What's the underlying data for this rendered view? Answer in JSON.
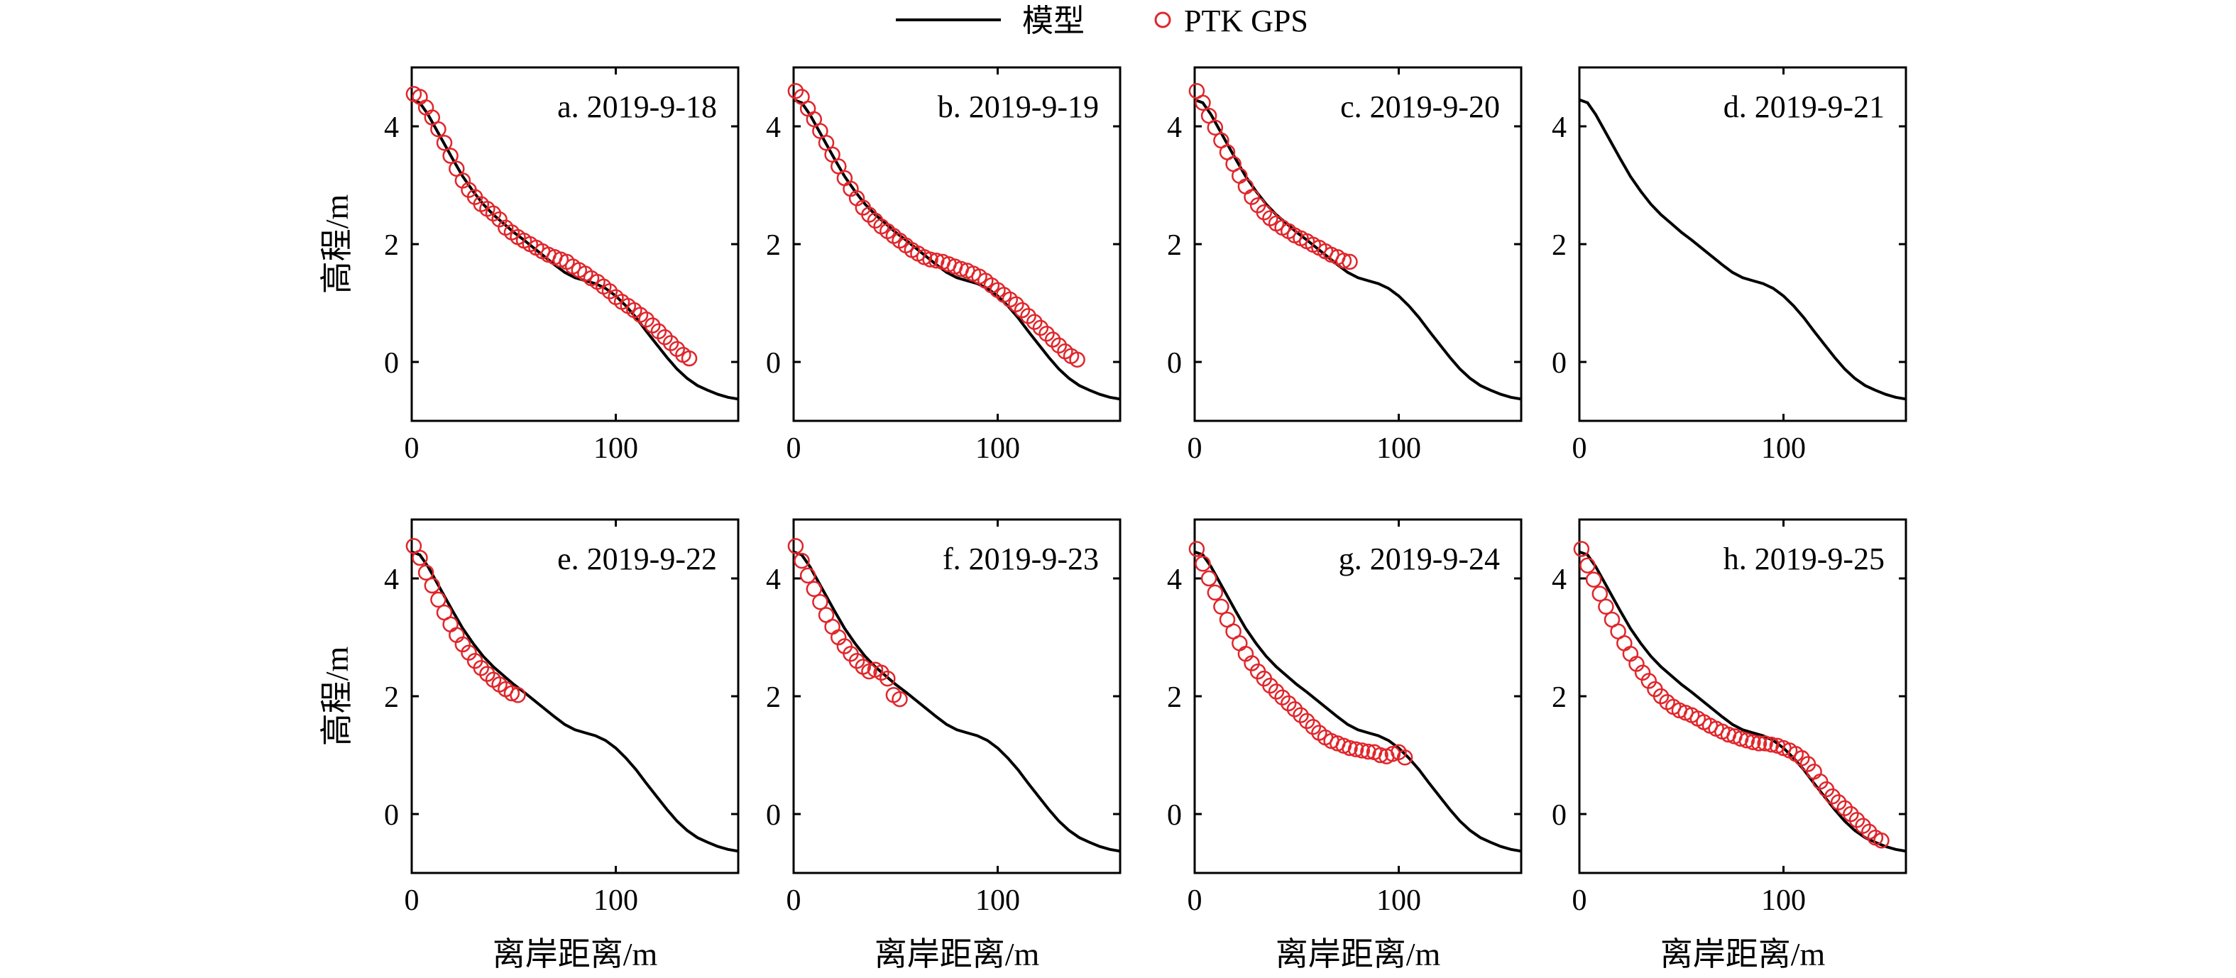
{
  "legend": {
    "model_label": "模型",
    "gps_label": "PTK GPS"
  },
  "colors": {
    "model": "#000000",
    "gps": "#e0262b",
    "axes": "#000000"
  },
  "chart_data": {
    "type": "line",
    "legend_position": "top-center",
    "grid": false,
    "xlim": [
      0,
      160
    ],
    "ylim": [
      -1,
      5
    ],
    "xticks": [
      0,
      100
    ],
    "yticks": [
      0,
      2,
      4
    ],
    "xlabel": "离岸距离/m",
    "ylabel": "高程/m",
    "model_profile": {
      "name": "模型",
      "x": [
        0,
        4,
        8,
        12,
        16,
        20,
        25,
        30,
        35,
        40,
        45,
        50,
        55,
        60,
        65,
        70,
        75,
        80,
        85,
        90,
        95,
        100,
        105,
        110,
        115,
        120,
        125,
        130,
        135,
        140,
        145,
        150,
        155,
        160
      ],
      "y": [
        4.45,
        4.4,
        4.2,
        3.95,
        3.7,
        3.45,
        3.15,
        2.9,
        2.68,
        2.5,
        2.35,
        2.2,
        2.07,
        1.93,
        1.79,
        1.65,
        1.52,
        1.43,
        1.38,
        1.33,
        1.25,
        1.12,
        0.95,
        0.75,
        0.52,
        0.3,
        0.08,
        -0.12,
        -0.28,
        -0.4,
        -0.48,
        -0.55,
        -0.6,
        -0.63
      ]
    },
    "panels": [
      {
        "label": "a. 2019-9-18",
        "gps": {
          "x": [
            1,
            4,
            7,
            10,
            13,
            16,
            19,
            22,
            25,
            28,
            31,
            34,
            37,
            40,
            43,
            46,
            49,
            52,
            55,
            58,
            61,
            64,
            67,
            70,
            73,
            76,
            79,
            82,
            85,
            88,
            91,
            94,
            97,
            100,
            103,
            106,
            109,
            112,
            115,
            118,
            121,
            124,
            127,
            130,
            133,
            136
          ],
          "y": [
            4.55,
            4.5,
            4.32,
            4.15,
            3.95,
            3.72,
            3.5,
            3.28,
            3.08,
            2.92,
            2.8,
            2.68,
            2.6,
            2.52,
            2.42,
            2.28,
            2.2,
            2.12,
            2.06,
            2.0,
            1.94,
            1.88,
            1.82,
            1.78,
            1.74,
            1.7,
            1.62,
            1.56,
            1.5,
            1.42,
            1.36,
            1.28,
            1.2,
            1.1,
            1.02,
            0.95,
            0.88,
            0.8,
            0.72,
            0.62,
            0.52,
            0.42,
            0.32,
            0.22,
            0.12,
            0.06
          ]
        }
      },
      {
        "label": "b. 2019-9-19",
        "gps": {
          "x": [
            1,
            4,
            7,
            10,
            13,
            16,
            19,
            22,
            25,
            28,
            31,
            34,
            37,
            40,
            43,
            46,
            49,
            52,
            55,
            58,
            61,
            64,
            67,
            70,
            73,
            76,
            79,
            82,
            85,
            88,
            91,
            94,
            97,
            100,
            103,
            106,
            109,
            112,
            115,
            118,
            121,
            124,
            127,
            130,
            133,
            136,
            139
          ],
          "y": [
            4.6,
            4.5,
            4.3,
            4.12,
            3.92,
            3.72,
            3.52,
            3.32,
            3.12,
            2.94,
            2.78,
            2.62,
            2.5,
            2.4,
            2.3,
            2.22,
            2.14,
            2.06,
            1.98,
            1.9,
            1.84,
            1.78,
            1.74,
            1.72,
            1.7,
            1.66,
            1.62,
            1.58,
            1.55,
            1.5,
            1.45,
            1.38,
            1.3,
            1.22,
            1.14,
            1.06,
            0.98,
            0.88,
            0.78,
            0.68,
            0.58,
            0.48,
            0.38,
            0.28,
            0.18,
            0.1,
            0.04
          ]
        }
      },
      {
        "label": "c. 2019-9-20",
        "gps": {
          "x": [
            1,
            4,
            7,
            10,
            13,
            16,
            19,
            22,
            25,
            28,
            31,
            34,
            37,
            40,
            43,
            46,
            49,
            52,
            55,
            58,
            61,
            64,
            67,
            70,
            73,
            76
          ],
          "y": [
            4.6,
            4.4,
            4.18,
            3.98,
            3.76,
            3.56,
            3.36,
            3.16,
            2.98,
            2.8,
            2.66,
            2.54,
            2.44,
            2.35,
            2.28,
            2.22,
            2.15,
            2.1,
            2.05,
            1.99,
            1.94,
            1.88,
            1.82,
            1.78,
            1.72,
            1.7
          ]
        }
      },
      {
        "label": "d. 2019-9-21",
        "gps": {
          "x": [],
          "y": []
        }
      },
      {
        "label": "e. 2019-9-22",
        "gps": {
          "x": [
            1,
            4,
            7,
            10,
            13,
            16,
            19,
            22,
            25,
            28,
            31,
            34,
            37,
            40,
            43,
            46,
            49,
            52
          ],
          "y": [
            4.55,
            4.35,
            4.1,
            3.88,
            3.64,
            3.42,
            3.22,
            3.04,
            2.88,
            2.74,
            2.6,
            2.48,
            2.38,
            2.28,
            2.2,
            2.12,
            2.05,
            2.02
          ]
        }
      },
      {
        "label": "f. 2019-9-23",
        "gps": {
          "x": [
            1,
            4,
            7,
            10,
            13,
            16,
            19,
            22,
            25,
            28,
            31,
            34,
            37,
            40,
            43,
            46,
            49,
            52
          ],
          "y": [
            4.55,
            4.3,
            4.05,
            3.82,
            3.6,
            3.38,
            3.18,
            3.0,
            2.85,
            2.72,
            2.6,
            2.5,
            2.42,
            2.45,
            2.4,
            2.3,
            2.02,
            1.95
          ]
        }
      },
      {
        "label": "g. 2019-9-24",
        "gps": {
          "x": [
            1,
            4,
            7,
            10,
            13,
            16,
            19,
            22,
            25,
            28,
            31,
            34,
            37,
            40,
            43,
            46,
            49,
            52,
            55,
            58,
            61,
            64,
            67,
            70,
            73,
            76,
            79,
            82,
            85,
            88,
            91,
            94,
            97,
            100,
            103
          ],
          "y": [
            4.5,
            4.25,
            4.0,
            3.76,
            3.52,
            3.3,
            3.1,
            2.9,
            2.72,
            2.56,
            2.42,
            2.3,
            2.18,
            2.08,
            1.98,
            1.88,
            1.78,
            1.68,
            1.58,
            1.48,
            1.38,
            1.3,
            1.24,
            1.2,
            1.16,
            1.12,
            1.1,
            1.08,
            1.06,
            1.05,
            1.0,
            0.98,
            1.02,
            1.05,
            0.96
          ]
        }
      },
      {
        "label": "h. 2019-9-25",
        "gps": {
          "x": [
            1,
            4,
            7,
            10,
            13,
            16,
            19,
            22,
            25,
            28,
            31,
            34,
            37,
            40,
            43,
            46,
            49,
            52,
            55,
            58,
            61,
            64,
            67,
            70,
            73,
            76,
            79,
            82,
            85,
            88,
            91,
            94,
            97,
            100,
            103,
            106,
            109,
            112,
            115,
            118,
            121,
            124,
            127,
            130,
            133,
            136,
            139,
            142,
            145,
            148
          ],
          "y": [
            4.5,
            4.22,
            3.98,
            3.74,
            3.52,
            3.3,
            3.1,
            2.9,
            2.72,
            2.55,
            2.4,
            2.26,
            2.12,
            2.0,
            1.9,
            1.82,
            1.76,
            1.72,
            1.68,
            1.62,
            1.56,
            1.5,
            1.45,
            1.4,
            1.35,
            1.32,
            1.28,
            1.25,
            1.22,
            1.2,
            1.2,
            1.18,
            1.16,
            1.12,
            1.08,
            1.02,
            0.95,
            0.85,
            0.72,
            0.55,
            0.42,
            0.3,
            0.2,
            0.1,
            0.0,
            -0.1,
            -0.2,
            -0.3,
            -0.4,
            -0.45
          ]
        }
      }
    ]
  }
}
